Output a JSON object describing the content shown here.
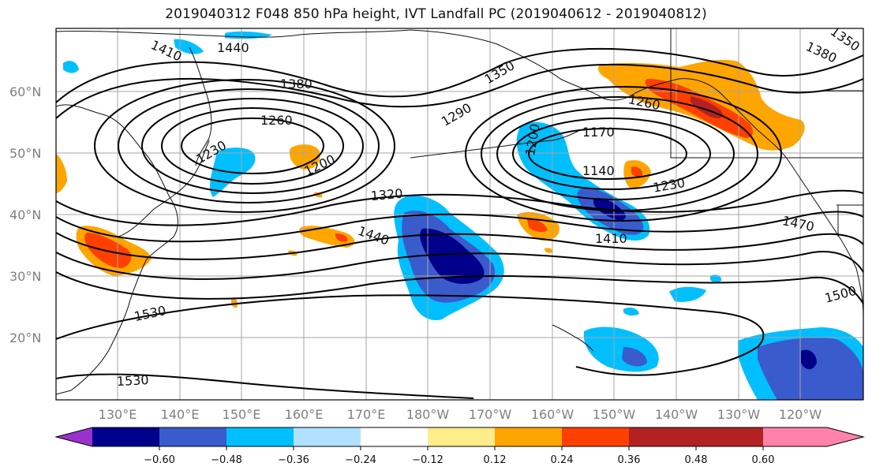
{
  "title": "2019040312 F048 850 hPa height, IVT Landfall PC (2019040612 - 2019040812)",
  "lat_labels": [
    "60°N",
    "50°N",
    "40°N",
    "30°N",
    "20°N"
  ],
  "lon_labels": [
    "130°E",
    "140°E",
    "150°E",
    "160°E",
    "170°E",
    "180°W",
    "170°W",
    "160°W",
    "150°W",
    "140°W",
    "130°W",
    "120°W"
  ],
  "contour_labels": [
    {
      "text": "1410"
    },
    {
      "text": "1440"
    },
    {
      "text": "1380"
    },
    {
      "text": "1350"
    },
    {
      "text": "1380"
    },
    {
      "text": "1350"
    },
    {
      "text": "1290"
    },
    {
      "text": "1260"
    },
    {
      "text": "1260"
    },
    {
      "text": "1230"
    },
    {
      "text": "1200"
    },
    {
      "text": "1200"
    },
    {
      "text": "1170"
    },
    {
      "text": "1140"
    },
    {
      "text": "1230"
    },
    {
      "text": "1320"
    },
    {
      "text": "1440"
    },
    {
      "text": "1410"
    },
    {
      "text": "1470"
    },
    {
      "text": "1530"
    },
    {
      "text": "1500"
    },
    {
      "text": "1530"
    }
  ],
  "colorbar": {
    "ticks": [
      "−0.60",
      "−0.48",
      "−0.36",
      "−0.24",
      "−0.12",
      "0.12",
      "0.24",
      "0.36",
      "0.48",
      "0.60"
    ],
    "colors": [
      "#9932CC",
      "#00008B",
      "#3A5BCC",
      "#00BFFF",
      "#B0E2FF",
      "#FFFFFF",
      "#FFEC8B",
      "#FFA500",
      "#FF4000",
      "#B22222",
      "#FF82AB"
    ]
  },
  "colors": {
    "deep_blue": "#00008B",
    "mid_blue": "#3A5BCC",
    "cyan": "#00BFFF",
    "light_blue": "#B0E2FF",
    "yellow": "#FFEC8B",
    "orange": "#FFA500",
    "red_orange": "#FF4000",
    "dark_red": "#B22222"
  }
}
